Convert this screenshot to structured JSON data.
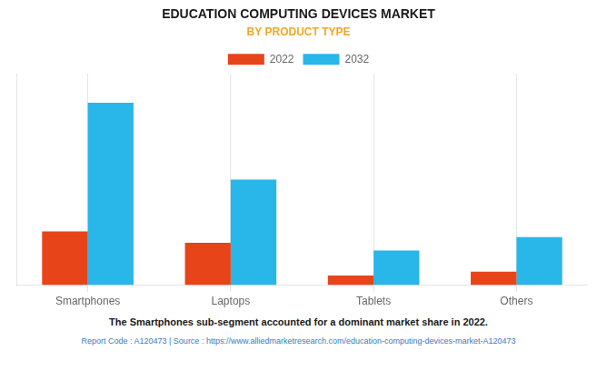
{
  "chart_data": {
    "type": "bar",
    "title": "EDUCATION COMPUTING DEVICES MARKET",
    "subtitle": "BY PRODUCT TYPE",
    "categories": [
      "Smartphones",
      "Laptops",
      "Tablets",
      "Others"
    ],
    "series": [
      {
        "name": "2022",
        "color": "#e8441a",
        "values": [
          28,
          22,
          5,
          7
        ]
      },
      {
        "name": "2032",
        "color": "#29b6e8",
        "values": [
          95,
          55,
          18,
          25
        ]
      }
    ],
    "ylim": [
      0,
      110
    ],
    "grid": true,
    "legend": "top",
    "tick_labels": "x",
    "annotation": "The Smartphones sub-segment accounted for a dominant market share in 2022.",
    "footer": "Report Code : A120473  |  Source : https://www.alliedmarketresearch.com/education-computing-devices-market-A120473"
  }
}
